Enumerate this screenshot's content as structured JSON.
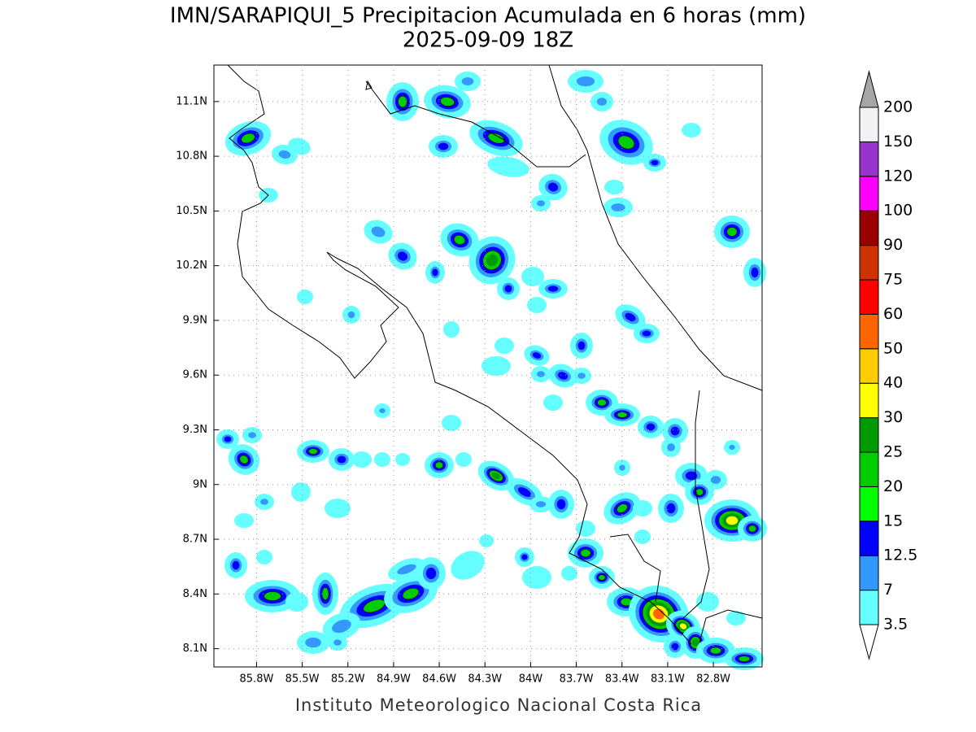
{
  "title": "IMN/SARAPIQUI_5 Precipitacion Acumulada en 6 horas (mm)",
  "subtitle": "2025-09-09 18Z",
  "footer": "Instituto Meteorologico Nacional Costa Rica",
  "map": {
    "xlim": [
      -86.08,
      -82.48
    ],
    "ylim": [
      8.0,
      11.3
    ],
    "grid": true,
    "xticks": [
      {
        "value": -85.8,
        "label": "85.8W"
      },
      {
        "value": -85.5,
        "label": "85.5W"
      },
      {
        "value": -85.2,
        "label": "85.2W"
      },
      {
        "value": -84.9,
        "label": "84.9W"
      },
      {
        "value": -84.6,
        "label": "84.6W"
      },
      {
        "value": -84.3,
        "label": "84.3W"
      },
      {
        "value": -84,
        "label": "84W"
      },
      {
        "value": -83.7,
        "label": "83.7W"
      },
      {
        "value": -83.4,
        "label": "83.4W"
      },
      {
        "value": -83.1,
        "label": "83.1W"
      },
      {
        "value": -82.8,
        "label": "82.8W"
      }
    ],
    "yticks": [
      {
        "value": 8.1,
        "label": "8.1N"
      },
      {
        "value": 8.4,
        "label": "8.4N"
      },
      {
        "value": 8.7,
        "label": "8.7N"
      },
      {
        "value": 9,
        "label": "9N"
      },
      {
        "value": 9.3,
        "label": "9.3N"
      },
      {
        "value": 9.6,
        "label": "9.6N"
      },
      {
        "value": 9.9,
        "label": "9.9N"
      },
      {
        "value": 10.2,
        "label": "10.2N"
      },
      {
        "value": 10.5,
        "label": "10.5N"
      },
      {
        "value": 10.8,
        "label": "10.8N"
      },
      {
        "value": 11.1,
        "label": "11.1N"
      }
    ]
  },
  "colorbar": {
    "levels": [
      3.5,
      7,
      12.5,
      15,
      20,
      25,
      30,
      40,
      50,
      60,
      75,
      90,
      100,
      120,
      150,
      200
    ],
    "colors": [
      "#ffffff",
      "#66ffff",
      "#3399ff",
      "#0000ff",
      "#00ff00",
      "#00cc00",
      "#009900",
      "#ffff00",
      "#ffcc00",
      "#ff6600",
      "#ff0000",
      "#cc3300",
      "#990000",
      "#ff00ff",
      "#9933cc",
      "#f2f2f2",
      "#a6a6a6"
    ]
  }
}
